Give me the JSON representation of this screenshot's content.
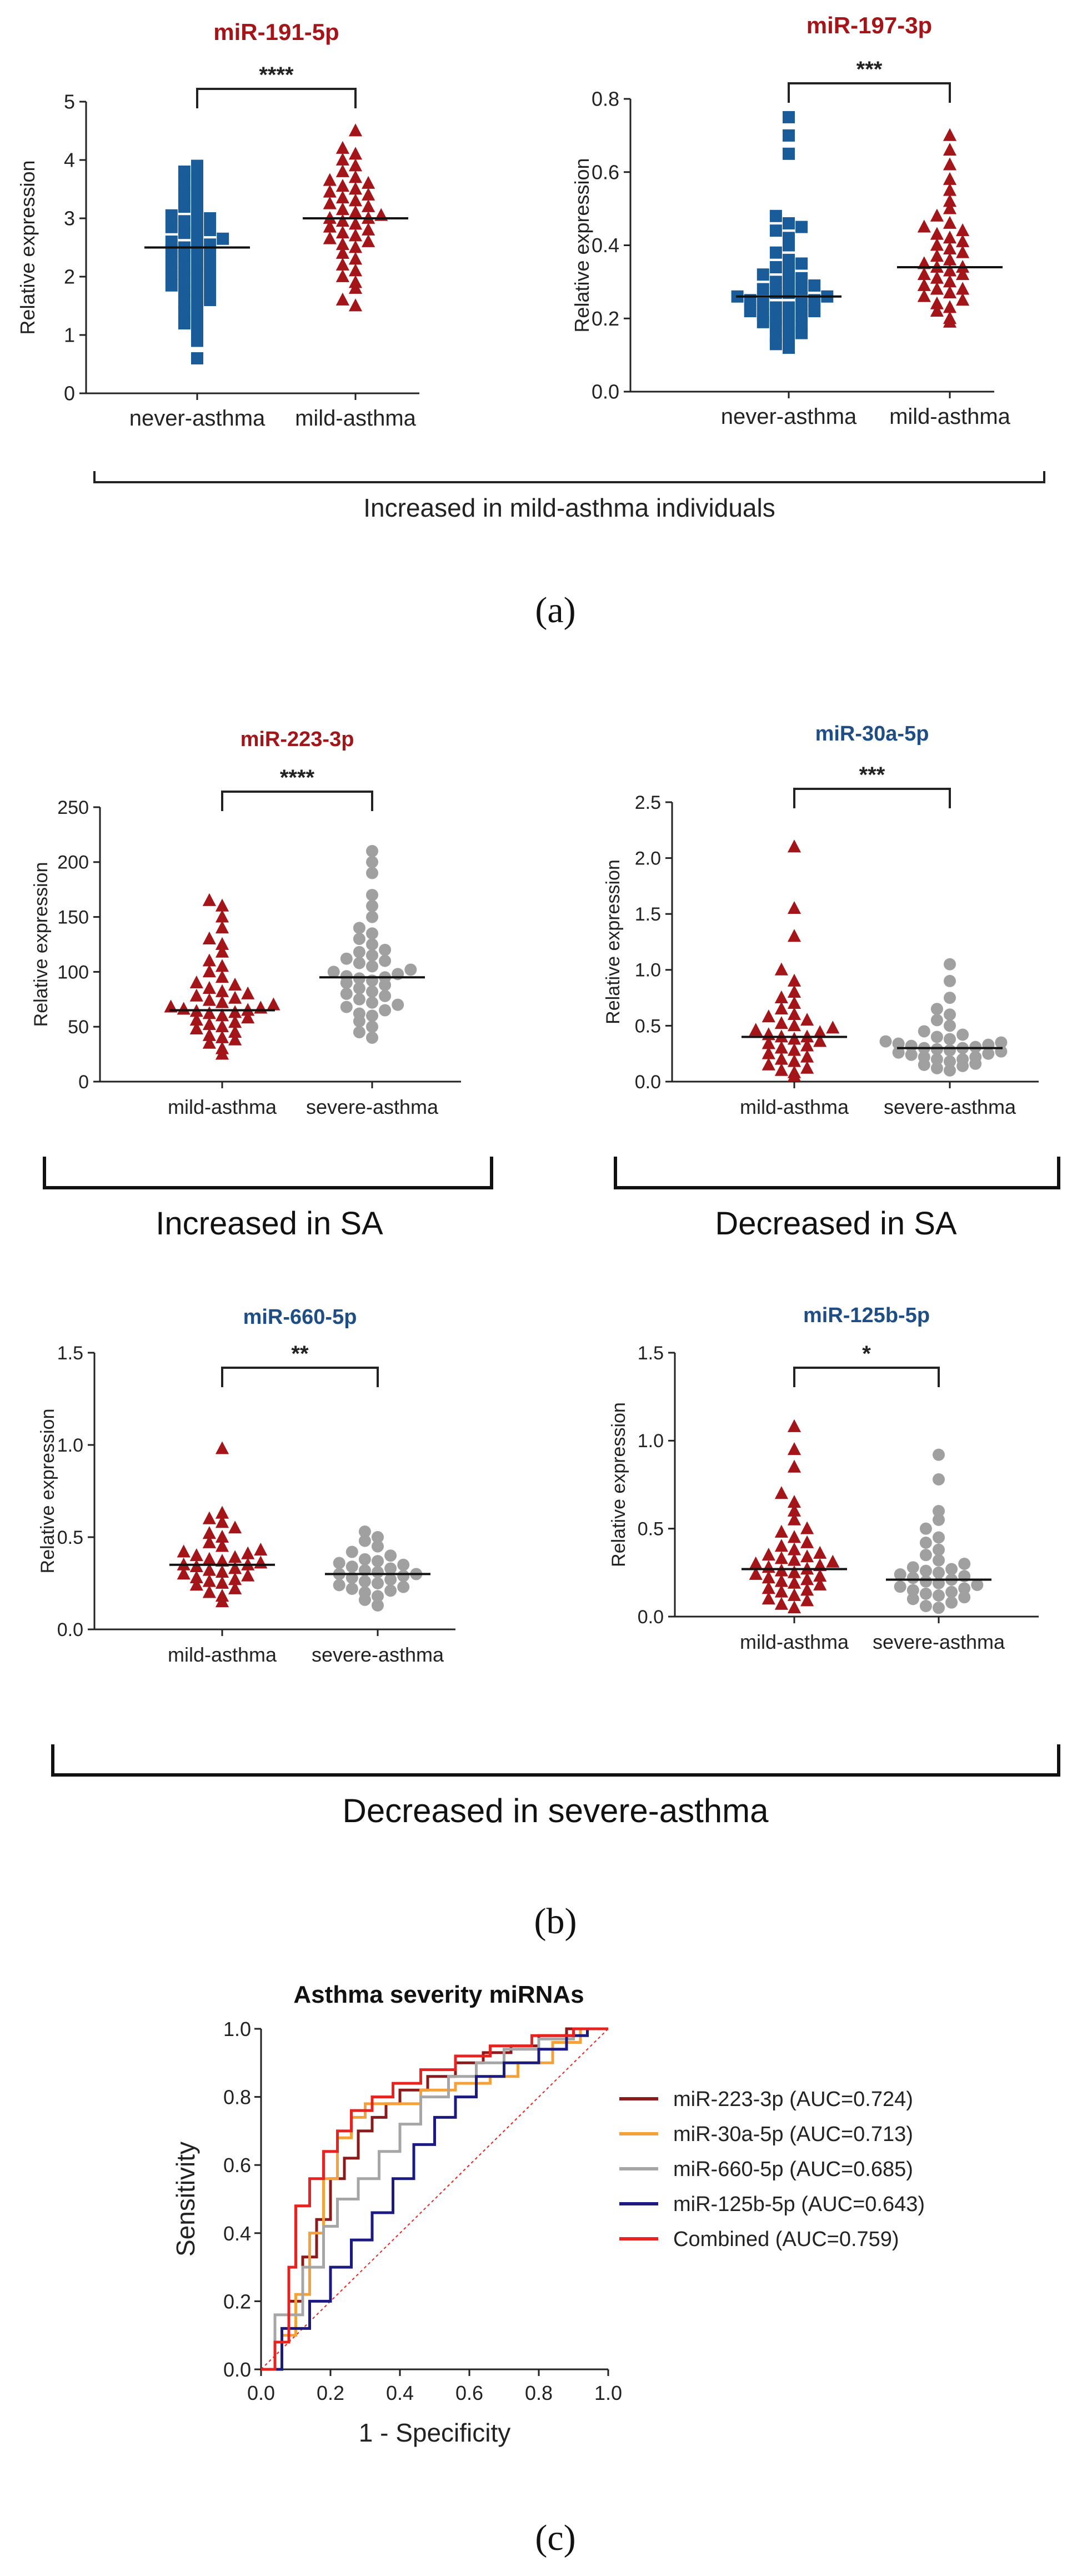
{
  "panel_a": {
    "label": "(a)",
    "group_caption": "Increased in mild-asthma individuals"
  },
  "panel_b": {
    "label": "(b)",
    "caption_left": "Increased in SA",
    "caption_right": "Decreased in SA",
    "caption_bottom": "Decreased in severe-asthma"
  },
  "panel_c": {
    "label": "(c)"
  },
  "colors": {
    "never_asthma": "#1a5c99",
    "mild_asthma": "#a31518",
    "severe_asthma": "#a0a0a0",
    "title_red": "#a31518",
    "title_blue": "#1f4e86"
  },
  "chart_data": [
    {
      "id": "mir191",
      "type": "scatter",
      "title": "miR-191-5p",
      "title_color": "red",
      "ylabel": "Relative expression",
      "ylim": [
        0,
        5
      ],
      "yticks": [
        0,
        1,
        2,
        3,
        4,
        5
      ],
      "categories": [
        "never-asthma",
        "mild-asthma"
      ],
      "significance": "****",
      "series": [
        {
          "name": "never-asthma",
          "marker": "square",
          "color": "never_asthma",
          "median": 2.5,
          "values": [
            0.6,
            0.9,
            1.1,
            1.2,
            1.3,
            1.4,
            1.5,
            1.55,
            1.6,
            1.7,
            1.75,
            1.8,
            1.85,
            1.9,
            1.95,
            2.0,
            2.05,
            2.1,
            2.15,
            2.2,
            2.25,
            2.3,
            2.35,
            2.4,
            2.45,
            2.5,
            2.5,
            2.55,
            2.6,
            2.65,
            2.7,
            2.75,
            2.8,
            2.85,
            2.9,
            2.95,
            3.0,
            3.05,
            3.1,
            3.2,
            3.3,
            3.4,
            3.5,
            3.6,
            3.7,
            3.8,
            3.9
          ]
        },
        {
          "name": "mild-asthma",
          "marker": "triangle",
          "color": "mild_asthma",
          "median": 3.0,
          "values": [
            1.5,
            1.6,
            1.8,
            1.9,
            2.0,
            2.1,
            2.2,
            2.3,
            2.4,
            2.5,
            2.55,
            2.6,
            2.65,
            2.7,
            2.75,
            2.8,
            2.85,
            2.9,
            2.95,
            3.0,
            3.0,
            3.05,
            3.1,
            3.15,
            3.2,
            3.25,
            3.3,
            3.35,
            3.4,
            3.45,
            3.5,
            3.55,
            3.6,
            3.65,
            3.7,
            3.8,
            3.9,
            4.0,
            4.1,
            4.2,
            4.5
          ]
        }
      ]
    },
    {
      "id": "mir197",
      "type": "scatter",
      "title": "miR-197-3p",
      "title_color": "red",
      "ylabel": "Relative expression",
      "ylim": [
        0,
        0.8
      ],
      "yticks": [
        0.0,
        0.2,
        0.4,
        0.6,
        0.8
      ],
      "categories": [
        "never-asthma",
        "mild-asthma"
      ],
      "significance": "***",
      "series": [
        {
          "name": "never-asthma",
          "marker": "square",
          "color": "never_asthma",
          "median": 0.26,
          "values": [
            0.12,
            0.13,
            0.14,
            0.15,
            0.16,
            0.17,
            0.18,
            0.18,
            0.19,
            0.2,
            0.2,
            0.21,
            0.21,
            0.22,
            0.22,
            0.23,
            0.23,
            0.24,
            0.24,
            0.25,
            0.25,
            0.26,
            0.26,
            0.27,
            0.27,
            0.28,
            0.28,
            0.29,
            0.3,
            0.3,
            0.31,
            0.32,
            0.33,
            0.34,
            0.35,
            0.36,
            0.38,
            0.4,
            0.42,
            0.44,
            0.45,
            0.46,
            0.48,
            0.65,
            0.7,
            0.75
          ]
        },
        {
          "name": "mild-asthma",
          "marker": "triangle",
          "color": "mild_asthma",
          "median": 0.34,
          "values": [
            0.19,
            0.2,
            0.22,
            0.23,
            0.24,
            0.25,
            0.26,
            0.27,
            0.28,
            0.28,
            0.29,
            0.3,
            0.31,
            0.32,
            0.32,
            0.33,
            0.34,
            0.34,
            0.35,
            0.36,
            0.37,
            0.38,
            0.39,
            0.4,
            0.41,
            0.42,
            0.43,
            0.44,
            0.45,
            0.46,
            0.48,
            0.5,
            0.52,
            0.55,
            0.58,
            0.62,
            0.66,
            0.7
          ]
        }
      ]
    },
    {
      "id": "mir223",
      "type": "scatter",
      "title": "miR-223-3p",
      "title_color": "red",
      "ylabel": "Relative expression",
      "ylim": [
        0,
        250
      ],
      "yticks": [
        0,
        50,
        100,
        150,
        200,
        250
      ],
      "categories": [
        "mild-asthma",
        "severe-asthma"
      ],
      "significance": "****",
      "series": [
        {
          "name": "mild-asthma",
          "marker": "triangle",
          "color": "mild_asthma",
          "median": 65,
          "values": [
            25,
            30,
            35,
            38,
            40,
            42,
            45,
            48,
            50,
            52,
            54,
            56,
            58,
            60,
            62,
            63,
            64,
            65,
            66,
            67,
            68,
            70,
            72,
            74,
            76,
            78,
            80,
            82,
            85,
            88,
            90,
            95,
            100,
            105,
            110,
            118,
            125,
            130,
            140,
            150,
            160,
            165
          ]
        },
        {
          "name": "severe-asthma",
          "marker": "circle",
          "color": "severe_asthma",
          "median": 95,
          "values": [
            40,
            45,
            50,
            55,
            60,
            62,
            65,
            68,
            70,
            72,
            75,
            78,
            80,
            82,
            85,
            88,
            90,
            92,
            94,
            95,
            96,
            98,
            100,
            102,
            105,
            108,
            110,
            112,
            115,
            118,
            120,
            125,
            130,
            135,
            140,
            150,
            160,
            170,
            190,
            200,
            210
          ]
        }
      ]
    },
    {
      "id": "mir30a",
      "type": "scatter",
      "title": "miR-30a-5p",
      "title_color": "blue",
      "ylabel": "Relative expression",
      "ylim": [
        0,
        2.5
      ],
      "yticks": [
        0.0,
        0.5,
        1.0,
        1.5,
        2.0,
        2.5
      ],
      "categories": [
        "mild-asthma",
        "severe-asthma"
      ],
      "significance": "***",
      "series": [
        {
          "name": "mild-asthma",
          "marker": "triangle",
          "color": "mild_asthma",
          "median": 0.4,
          "values": [
            0.05,
            0.08,
            0.1,
            0.12,
            0.15,
            0.18,
            0.2,
            0.22,
            0.25,
            0.28,
            0.3,
            0.32,
            0.34,
            0.36,
            0.38,
            0.4,
            0.4,
            0.42,
            0.44,
            0.46,
            0.48,
            0.5,
            0.52,
            0.55,
            0.58,
            0.6,
            0.65,
            0.7,
            0.75,
            0.8,
            0.9,
            1.0,
            1.3,
            1.55,
            2.1
          ]
        },
        {
          "name": "severe-asthma",
          "marker": "circle",
          "color": "severe_asthma",
          "median": 0.3,
          "values": [
            0.1,
            0.12,
            0.14,
            0.15,
            0.16,
            0.18,
            0.2,
            0.2,
            0.22,
            0.22,
            0.24,
            0.25,
            0.26,
            0.27,
            0.28,
            0.29,
            0.3,
            0.3,
            0.31,
            0.32,
            0.33,
            0.34,
            0.35,
            0.36,
            0.38,
            0.4,
            0.42,
            0.45,
            0.5,
            0.55,
            0.6,
            0.65,
            0.75,
            0.9,
            1.05
          ]
        }
      ]
    },
    {
      "id": "mir660",
      "type": "scatter",
      "title": "miR-660-5p",
      "title_color": "blue",
      "ylabel": "Relative expression",
      "ylim": [
        0,
        1.5
      ],
      "yticks": [
        0.0,
        0.5,
        1.0,
        1.5
      ],
      "categories": [
        "mild-asthma",
        "severe-asthma"
      ],
      "significance": "**",
      "series": [
        {
          "name": "mild-asthma",
          "marker": "triangle",
          "color": "mild_asthma",
          "median": 0.35,
          "values": [
            0.15,
            0.18,
            0.2,
            0.22,
            0.24,
            0.25,
            0.26,
            0.27,
            0.28,
            0.29,
            0.3,
            0.31,
            0.32,
            0.33,
            0.34,
            0.35,
            0.35,
            0.36,
            0.37,
            0.38,
            0.39,
            0.4,
            0.41,
            0.42,
            0.43,
            0.45,
            0.47,
            0.5,
            0.52,
            0.55,
            0.58,
            0.6,
            0.63,
            0.98
          ]
        },
        {
          "name": "severe-asthma",
          "marker": "circle",
          "color": "severe_asthma",
          "median": 0.3,
          "values": [
            0.13,
            0.16,
            0.18,
            0.2,
            0.21,
            0.22,
            0.23,
            0.24,
            0.25,
            0.26,
            0.27,
            0.28,
            0.29,
            0.3,
            0.3,
            0.31,
            0.32,
            0.33,
            0.34,
            0.35,
            0.36,
            0.37,
            0.38,
            0.4,
            0.42,
            0.45,
            0.48,
            0.5,
            0.53
          ]
        }
      ]
    },
    {
      "id": "mir125b",
      "type": "scatter",
      "title": "miR-125b-5p",
      "title_color": "blue",
      "ylabel": "Relative expression",
      "ylim": [
        0,
        1.5
      ],
      "yticks": [
        0.0,
        0.5,
        1.0,
        1.5
      ],
      "categories": [
        "mild-asthma",
        "severe-asthma"
      ],
      "significance": "*",
      "series": [
        {
          "name": "mild-asthma",
          "marker": "triangle",
          "color": "mild_asthma",
          "median": 0.27,
          "values": [
            0.05,
            0.07,
            0.09,
            0.1,
            0.12,
            0.14,
            0.15,
            0.16,
            0.18,
            0.19,
            0.2,
            0.21,
            0.22,
            0.23,
            0.24,
            0.25,
            0.26,
            0.27,
            0.28,
            0.29,
            0.3,
            0.31,
            0.32,
            0.33,
            0.34,
            0.35,
            0.36,
            0.38,
            0.4,
            0.42,
            0.45,
            0.48,
            0.5,
            0.55,
            0.6,
            0.65,
            0.7,
            0.85,
            0.95,
            1.08
          ]
        },
        {
          "name": "severe-asthma",
          "marker": "circle",
          "color": "severe_asthma",
          "median": 0.21,
          "values": [
            0.05,
            0.06,
            0.08,
            0.1,
            0.11,
            0.12,
            0.13,
            0.14,
            0.15,
            0.16,
            0.17,
            0.18,
            0.19,
            0.2,
            0.21,
            0.22,
            0.23,
            0.24,
            0.25,
            0.26,
            0.27,
            0.28,
            0.3,
            0.32,
            0.35,
            0.38,
            0.42,
            0.45,
            0.5,
            0.55,
            0.6,
            0.78,
            0.92
          ]
        }
      ]
    },
    {
      "id": "roc",
      "type": "line",
      "title": "Asthma severity miRNAs",
      "xlabel": "1 - Specificity",
      "ylabel": "Sensitivity",
      "xlim": [
        0,
        1
      ],
      "ylim": [
        0,
        1
      ],
      "xticks": [
        0.0,
        0.2,
        0.4,
        0.6,
        0.8,
        1.0
      ],
      "yticks": [
        0.0,
        0.2,
        0.4,
        0.6,
        0.8,
        1.0
      ],
      "reference_line": true,
      "series": [
        {
          "name": "miR-223-3p (AUC=0.724)",
          "color": "#8b1a1a",
          "x": [
            0,
            0.04,
            0.04,
            0.08,
            0.08,
            0.12,
            0.12,
            0.16,
            0.16,
            0.2,
            0.2,
            0.24,
            0.24,
            0.28,
            0.28,
            0.32,
            0.32,
            0.36,
            0.36,
            0.4,
            0.4,
            0.48,
            0.48,
            0.56,
            0.56,
            0.64,
            0.64,
            0.72,
            0.72,
            0.8,
            0.8,
            0.88,
            0.88,
            1.0
          ],
          "y": [
            0,
            0,
            0.08,
            0.08,
            0.2,
            0.2,
            0.33,
            0.33,
            0.44,
            0.44,
            0.56,
            0.56,
            0.62,
            0.62,
            0.7,
            0.7,
            0.74,
            0.74,
            0.78,
            0.78,
            0.82,
            0.82,
            0.86,
            0.86,
            0.9,
            0.9,
            0.93,
            0.93,
            0.95,
            0.95,
            0.98,
            0.98,
            1.0,
            1.0
          ]
        },
        {
          "name": "miR-30a-5p (AUC=0.713)",
          "color": "#f4a13a",
          "x": [
            0,
            0.06,
            0.06,
            0.1,
            0.1,
            0.14,
            0.14,
            0.18,
            0.18,
            0.22,
            0.22,
            0.26,
            0.26,
            0.3,
            0.3,
            0.36,
            0.36,
            0.46,
            0.46,
            0.56,
            0.56,
            0.66,
            0.66,
            0.74,
            0.74,
            0.84,
            0.84,
            0.92,
            0.92,
            1.0
          ],
          "y": [
            0,
            0,
            0.1,
            0.1,
            0.22,
            0.22,
            0.4,
            0.4,
            0.56,
            0.56,
            0.68,
            0.68,
            0.74,
            0.74,
            0.78,
            0.78,
            0.78,
            0.78,
            0.82,
            0.82,
            0.84,
            0.84,
            0.86,
            0.86,
            0.9,
            0.9,
            0.96,
            0.96,
            1.0,
            1.0
          ]
        },
        {
          "name": "miR-660-5p (AUC=0.685)",
          "color": "#a6a6a6",
          "x": [
            0,
            0.04,
            0.04,
            0.12,
            0.12,
            0.18,
            0.18,
            0.22,
            0.22,
            0.28,
            0.28,
            0.34,
            0.34,
            0.4,
            0.4,
            0.46,
            0.46,
            0.54,
            0.54,
            0.62,
            0.62,
            0.7,
            0.7,
            0.8,
            0.8,
            0.9,
            0.9,
            1.0
          ],
          "y": [
            0,
            0,
            0.16,
            0.16,
            0.3,
            0.3,
            0.42,
            0.42,
            0.5,
            0.5,
            0.56,
            0.56,
            0.64,
            0.64,
            0.72,
            0.72,
            0.8,
            0.8,
            0.86,
            0.86,
            0.9,
            0.9,
            0.94,
            0.94,
            0.97,
            0.97,
            1.0,
            1.0
          ]
        },
        {
          "name": "miR-125b-5p (AUC=0.643)",
          "color": "#1a1a80",
          "x": [
            0,
            0.06,
            0.06,
            0.14,
            0.14,
            0.2,
            0.2,
            0.26,
            0.26,
            0.32,
            0.32,
            0.38,
            0.38,
            0.44,
            0.44,
            0.5,
            0.5,
            0.56,
            0.56,
            0.62,
            0.62,
            0.7,
            0.7,
            0.8,
            0.8,
            0.88,
            0.88,
            0.94,
            0.94,
            1.0
          ],
          "y": [
            0,
            0,
            0.12,
            0.12,
            0.2,
            0.2,
            0.3,
            0.3,
            0.38,
            0.38,
            0.46,
            0.46,
            0.56,
            0.56,
            0.66,
            0.66,
            0.74,
            0.74,
            0.8,
            0.8,
            0.86,
            0.86,
            0.9,
            0.9,
            0.94,
            0.94,
            0.98,
            0.98,
            1.0,
            1.0
          ]
        },
        {
          "name": "Combined (AUC=0.759)",
          "color": "#e8231f",
          "x": [
            0,
            0.04,
            0.04,
            0.08,
            0.08,
            0.1,
            0.1,
            0.14,
            0.14,
            0.18,
            0.18,
            0.22,
            0.22,
            0.26,
            0.26,
            0.32,
            0.32,
            0.38,
            0.38,
            0.46,
            0.46,
            0.56,
            0.56,
            0.66,
            0.66,
            0.78,
            0.78,
            0.9,
            0.9,
            1.0
          ],
          "y": [
            0,
            0,
            0.08,
            0.08,
            0.3,
            0.3,
            0.48,
            0.48,
            0.56,
            0.56,
            0.64,
            0.64,
            0.7,
            0.7,
            0.76,
            0.76,
            0.8,
            0.8,
            0.84,
            0.84,
            0.88,
            0.88,
            0.92,
            0.92,
            0.95,
            0.95,
            0.98,
            0.98,
            1.0,
            1.0
          ]
        }
      ]
    }
  ]
}
